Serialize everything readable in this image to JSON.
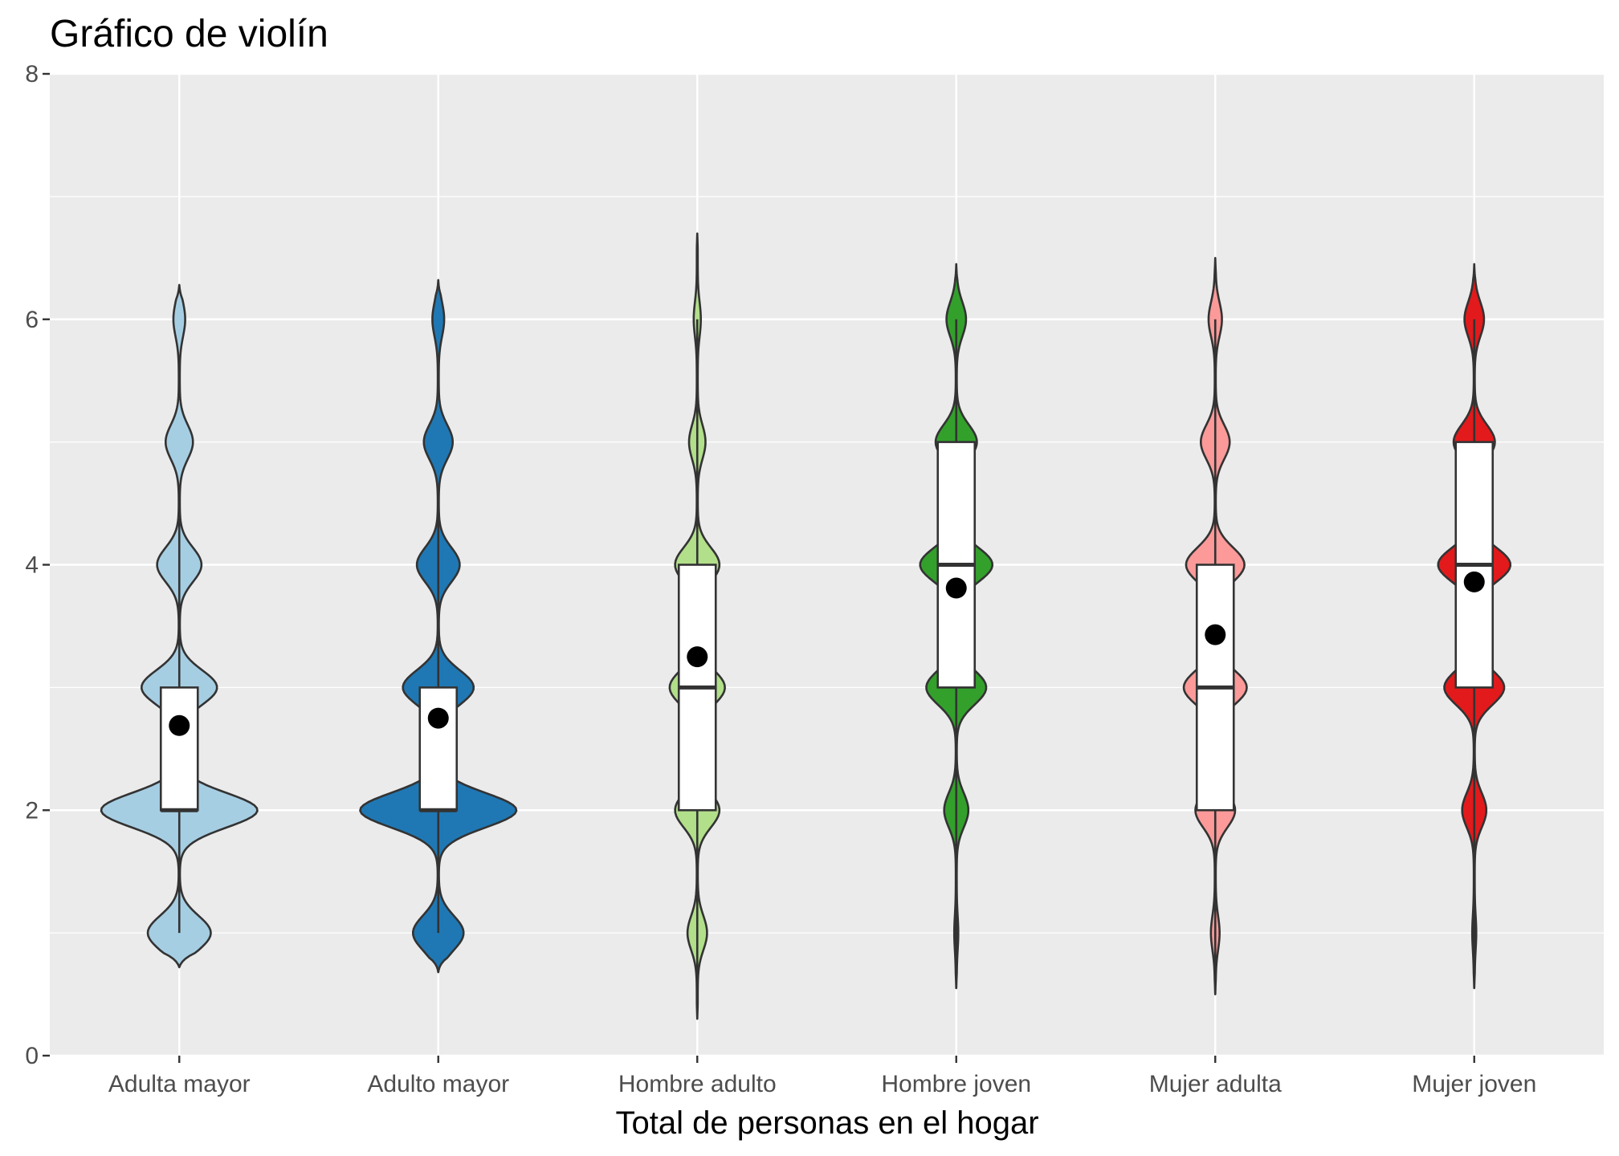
{
  "chart_data": {
    "type": "violin",
    "title": "Gráfico de violín",
    "xlabel": "Total de personas en el hogar",
    "ylabel": "",
    "ylim": [
      0,
      8
    ],
    "yticks": [
      0,
      2,
      4,
      6,
      8
    ],
    "grid": true,
    "legend": "none",
    "categories": [
      "Adulta mayor",
      "Adulto mayor",
      "Hombre adulto",
      "Hombre joven",
      "Mujer adulta",
      "Mujer joven"
    ],
    "colors": [
      "#A6CEE3",
      "#1F78B4",
      "#B2DF8A",
      "#33A02C",
      "#FB9A99",
      "#E31A1C"
    ],
    "series": [
      {
        "category": "Adulta mayor",
        "violin_range": [
          0.72,
          6.28
        ],
        "density": [
          [
            1,
            0.4
          ],
          [
            2,
            1.0
          ],
          [
            3,
            0.48
          ],
          [
            4,
            0.28
          ],
          [
            5,
            0.17
          ],
          [
            6,
            0.07
          ]
        ],
        "box": {
          "min": 1,
          "q1": 2,
          "median": 2,
          "q3": 3,
          "max": 4.5
        },
        "mean": 2.69
      },
      {
        "category": "Adulto mayor",
        "violin_range": [
          0.68,
          6.32
        ],
        "density": [
          [
            1,
            0.32
          ],
          [
            2,
            1.0
          ],
          [
            3,
            0.45
          ],
          [
            4,
            0.27
          ],
          [
            5,
            0.18
          ],
          [
            6,
            0.07
          ]
        ],
        "box": {
          "min": 1,
          "q1": 2,
          "median": 2,
          "q3": 3,
          "max": 4.5
        },
        "mean": 2.75
      },
      {
        "category": "Hombre adulto",
        "violin_range": [
          0.3,
          6.7
        ],
        "density": [
          [
            1,
            0.12
          ],
          [
            2,
            0.28
          ],
          [
            3,
            0.35
          ],
          [
            4,
            0.28
          ],
          [
            5,
            0.1
          ],
          [
            6,
            0.04
          ]
        ],
        "box": {
          "min": 0.5,
          "q1": 2,
          "median": 3,
          "q3": 4,
          "max": 6
        },
        "mean": 3.25
      },
      {
        "category": "Hombre joven",
        "violin_range": [
          0.55,
          6.45
        ],
        "density": [
          [
            1,
            0.02
          ],
          [
            2,
            0.15
          ],
          [
            3,
            0.38
          ],
          [
            4,
            0.46
          ],
          [
            5,
            0.26
          ],
          [
            6,
            0.12
          ]
        ],
        "box": {
          "min": 0.55,
          "q1": 3,
          "median": 4,
          "q3": 5,
          "max": 6
        },
        "mean": 3.81
      },
      {
        "category": "Mujer adulta",
        "violin_range": [
          0.5,
          6.5
        ],
        "density": [
          [
            1,
            0.05
          ],
          [
            2,
            0.25
          ],
          [
            3,
            0.4
          ],
          [
            4,
            0.37
          ],
          [
            5,
            0.18
          ],
          [
            6,
            0.08
          ]
        ],
        "box": {
          "min": 0.5,
          "q1": 2,
          "median": 3,
          "q3": 4,
          "max": 6
        },
        "mean": 3.43
      },
      {
        "category": "Mujer joven",
        "violin_range": [
          0.55,
          6.45
        ],
        "density": [
          [
            1,
            0.02
          ],
          [
            2,
            0.15
          ],
          [
            3,
            0.38
          ],
          [
            4,
            0.46
          ],
          [
            5,
            0.26
          ],
          [
            6,
            0.12
          ]
        ],
        "box": {
          "min": 0.55,
          "q1": 3,
          "median": 4,
          "q3": 5,
          "max": 6
        },
        "mean": 3.86
      }
    ]
  }
}
